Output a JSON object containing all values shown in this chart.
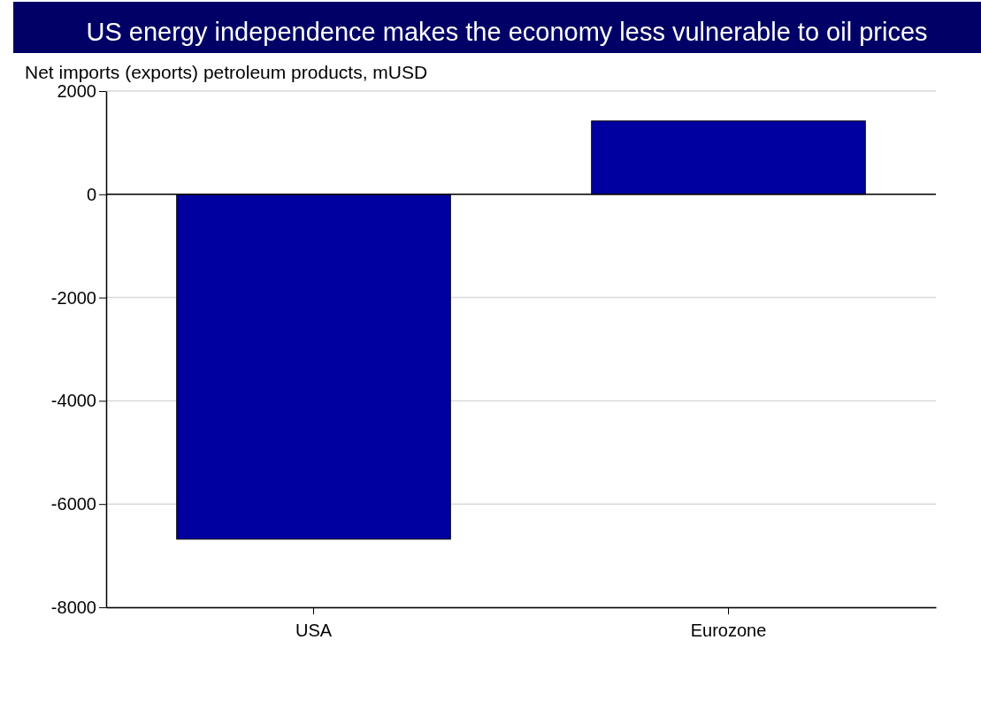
{
  "chart_data": {
    "type": "bar",
    "title": "US energy independence makes the economy less vulnerable to oil prices",
    "ylabel": "Net imports (exports) petroleum products, mUSD",
    "categories": [
      "USA",
      "Eurozone"
    ],
    "values": [
      -6680,
      1420
    ],
    "color": "#0000a0",
    "ylim": [
      -8000,
      2000
    ],
    "yticks": [
      -8000,
      -6000,
      -4000,
      -2000,
      0,
      2000
    ],
    "grid": "y"
  }
}
